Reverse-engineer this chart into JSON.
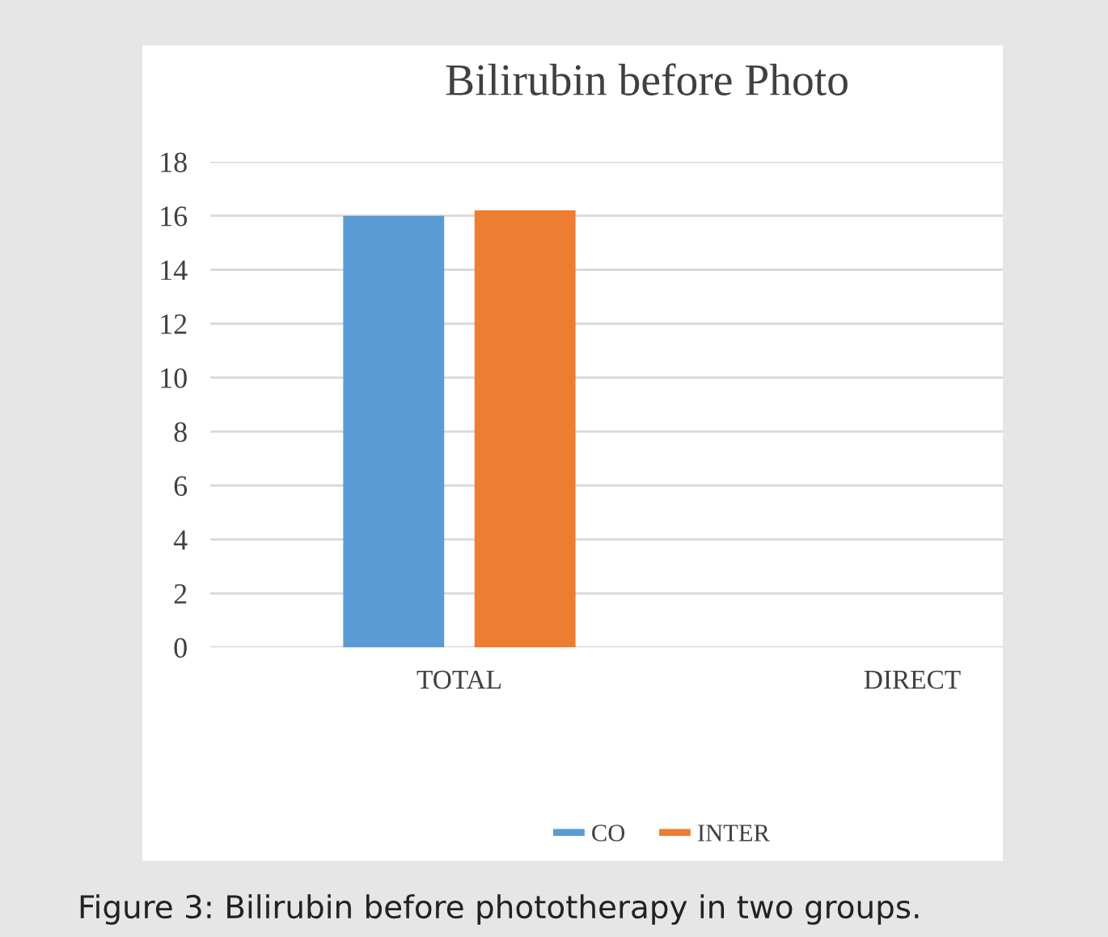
{
  "chart_data": {
    "type": "bar",
    "title": "Bilirubin before Photo",
    "categories": [
      "TOTAL",
      "DIRECT"
    ],
    "series": [
      {
        "name": "CO",
        "color": "#5b9bd5",
        "values": [
          16.0,
          null
        ]
      },
      {
        "name": "INTER",
        "color": "#ed7d31",
        "values": [
          16.2,
          null
        ]
      }
    ],
    "ylim": [
      0,
      18
    ],
    "yticks": [
      0,
      2,
      4,
      6,
      8,
      10,
      12,
      14,
      16,
      18
    ],
    "grid": "y",
    "legend": "bottom",
    "annotations": [
      "Figure 3: Bilirubin before phototherapy in two groups."
    ]
  }
}
